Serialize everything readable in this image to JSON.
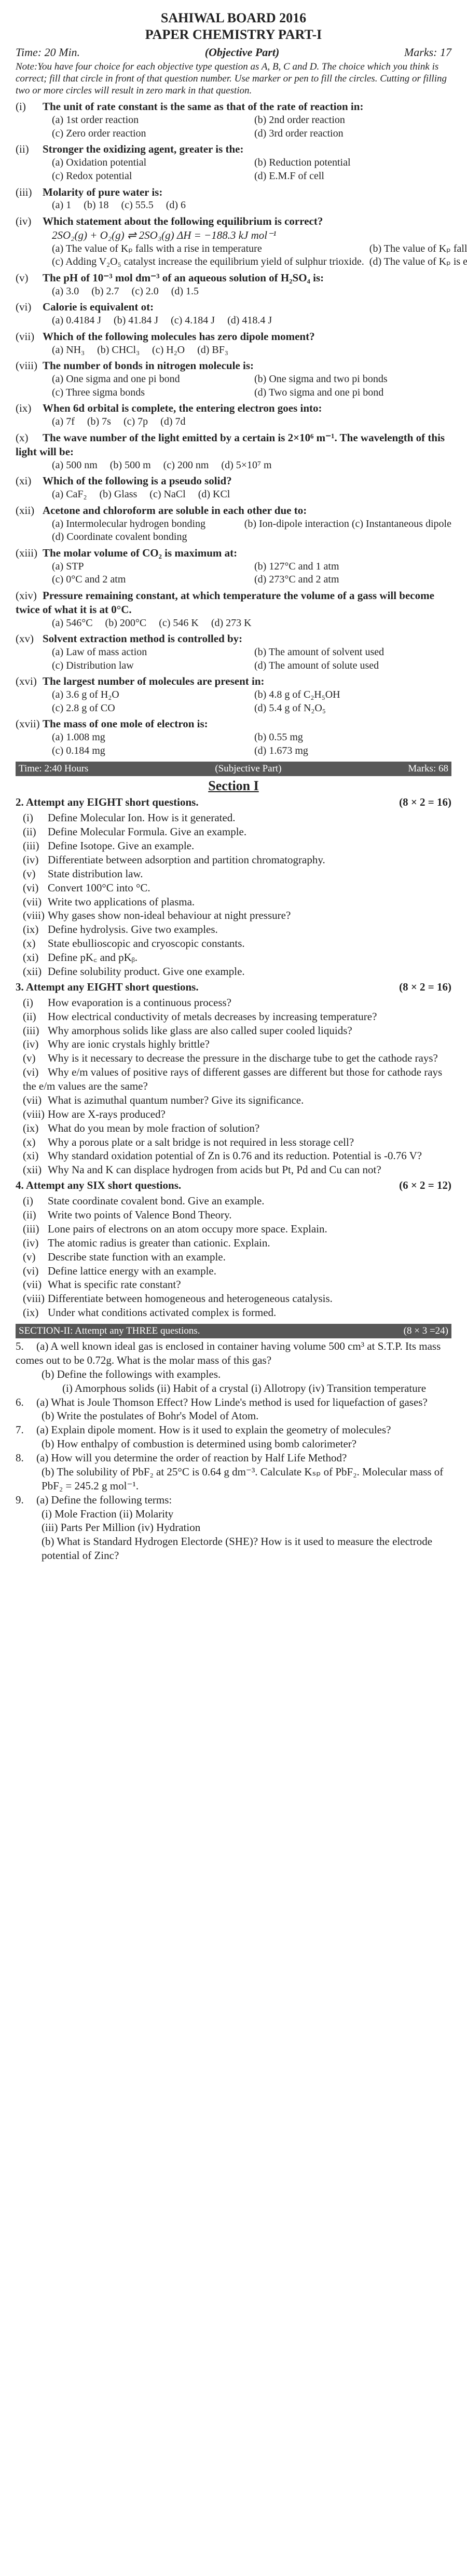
{
  "header": {
    "board": "SAHIWAL BOARD 2016",
    "paper": "PAPER CHEMISTRY PART-I",
    "time": "Time: 20 Min.",
    "part": "(Objective Part)",
    "marks": "Marks: 17",
    "note": "Note:You have four choice for each objective type question as A, B, C and D. The choice which you think is correct; fill that circle in front of that question number. Use marker or pen to fill the circles. Cutting or filling two or more circles will result in zero mark in that question."
  },
  "mcq": [
    {
      "n": "(i)",
      "q": "The unit of rate constant is the same as that of the rate of reaction in:",
      "o": [
        "(a)   1st order reaction",
        "(b)   2nd order reaction",
        "(c)   Zero order reaction",
        "(d)   3rd order reaction"
      ]
    },
    {
      "n": "(ii)",
      "q": "Stronger the oxidizing agent, greater is the:",
      "o": [
        "(a)   Oxidation potential",
        "(b)   Reduction potential",
        "(c)   Redox potential",
        "(d)   E.M.F of cell"
      ]
    },
    {
      "n": "(iii)",
      "q": "Molarity of pure water is:",
      "o4": [
        "(a)   1",
        "(b)   18",
        "(c)   55.5",
        "(d)   6"
      ]
    },
    {
      "n": "(iv)",
      "q": "Which statement about the following equilibrium is correct?",
      "extra": "2SO₂(g) + O₂(g) ⇌ 2SO₃(g) ΔH = −188.3 kJ mol⁻¹",
      "o": [
        "(a)   The value of Kₚ falls with a rise in temperature",
        "(b)   The value of Kₚ falls with increasing pressure",
        "(c)   Adding V₂O₅ catalyst increase the equilibrium yield of sulphur trioxide.",
        "(d)   The value of Kₚ is equal to K꜀."
      ]
    },
    {
      "n": "(v)",
      "q": "The pH of 10⁻³ mol dm⁻³ of an aqueous solution of H₂SO₄ is:",
      "o4": [
        "(a)   3.0",
        "(b)   2.7",
        "(c)   2.0",
        "(d)   1.5"
      ]
    },
    {
      "n": "(vi)",
      "q": "Calorie is equivalent ot:",
      "o4": [
        "(a)   0.4184 J",
        "(b)   41.84 J",
        "(c)   4.184 J",
        "(d)   418.4 J"
      ]
    },
    {
      "n": "(vii)",
      "q": "Which of the following molecules has zero dipole moment?",
      "o4": [
        "(a)   NH₃",
        "(b)   CHCl₃",
        "(c)   H₂O",
        "(d)   BF₃"
      ]
    },
    {
      "n": "(viii)",
      "q": "The number of bonds in nitrogen molecule is:",
      "o": [
        "(a)   One sigma and one pi bond",
        "(b)   One sigma and two pi bonds",
        "(c)   Three sigma bonds",
        "(d)   Two sigma and one pi bond"
      ]
    },
    {
      "n": "(ix)",
      "q": "When 6d orbital is complete, the entering electron goes into:",
      "o4": [
        "(a)   7f",
        "(b)   7s",
        "(c)   7p",
        "(d)   7d"
      ]
    },
    {
      "n": "(x)",
      "q": "The wave number of the light emitted by a certain is 2×10⁶ m⁻¹. The wavelength of this light will be:",
      "o4": [
        "(a)   500 nm",
        "(b)   500 m",
        "(c)   200 nm",
        "(d)   5×10⁷ m"
      ]
    },
    {
      "n": "(xi)",
      "q": "Which of the following is a pseudo solid?",
      "o4": [
        "(a)   CaF₂",
        "(b)   Glass",
        "(c)   NaCl",
        "(d)   KCl"
      ]
    },
    {
      "n": "(xii)",
      "q": "Acetone and chloroform are soluble in each other due to:",
      "o": [
        "(a)   Intermolecular hydrogen bonding",
        "(b)   Ion-dipole interaction     (c)   Instantaneous dipole",
        "(d)   Coordinate covalent bonding",
        ""
      ]
    },
    {
      "n": "(xiii)",
      "q": "The molar volume of CO₂ is maximum at:",
      "o": [
        "(a)   STP",
        "(b)   127°C and 1 atm",
        "(c)   0°C and 2 atm",
        "(d)   273°C and 2 atm"
      ]
    },
    {
      "n": "(xiv)",
      "q": "Pressure remaining constant, at which temperature the volume of a gass will become twice of what it is at 0°C.",
      "o4": [
        "(a)   546°C",
        "(b)   200°C",
        "(c)   546 K",
        "(d)   273 K"
      ]
    },
    {
      "n": "(xv)",
      "q": "Solvent extraction method is controlled by:",
      "o": [
        "(a)   Law of mass action",
        "(b)   The amount of solvent used",
        "(c)   Distribution law",
        "(d)   The amount of solute used"
      ]
    },
    {
      "n": "(xvi)",
      "q": "The largest number of molecules are present in:",
      "o": [
        "(a)   3.6 g of H₂O",
        "(b)   4.8 g of C₂H₅OH",
        "(c)   2.8 g of CO",
        "(d)   5.4 g of N₂O₅"
      ]
    },
    {
      "n": "(xvii)",
      "q": "The mass of one mole of electron is:",
      "o": [
        "(a)   1.008 mg",
        "(b)   0.55 mg",
        "(c)   0.184 mg",
        "(d)   1.673 mg"
      ]
    }
  ],
  "subjbar": {
    "left": "Time: 2:40 Hours",
    "mid": "(Subjective Part)",
    "right": "Marks: 68"
  },
  "section1_title": "Section I",
  "groups": [
    {
      "head_l": "2.   Attempt any EIGHT short questions.",
      "head_r": "(8 × 2 = 16)",
      "items": [
        {
          "n": "(i)",
          "t": "Define Molecular Ion. How is it generated."
        },
        {
          "n": "(ii)",
          "t": "Define Molecular Formula. Give an example."
        },
        {
          "n": "(iii)",
          "t": "Define Isotope. Give an example."
        },
        {
          "n": "(iv)",
          "t": "Differentiate between adsorption and partition chromatography."
        },
        {
          "n": "(v)",
          "t": "State distribution law."
        },
        {
          "n": "(vi)",
          "t": "Convert 100°C into °C."
        },
        {
          "n": "(vii)",
          "t": "Write two applications of plasma."
        },
        {
          "n": "(viii)",
          "t": "Why gases show non-ideal behaviour at night pressure?"
        },
        {
          "n": "(ix)",
          "t": "Define hydrolysis. Give two examples."
        },
        {
          "n": "(x)",
          "t": "State ebullioscopic and cryoscopic constants."
        },
        {
          "n": "(xi)",
          "t": "Define pK꜀ and pKᵦ."
        },
        {
          "n": "(xii)",
          "t": "Define solubility product. Give one example."
        }
      ]
    },
    {
      "head_l": "3.   Attempt any EIGHT short questions.",
      "head_r": "(8 × 2 = 16)",
      "items": [
        {
          "n": "(i)",
          "t": "How evaporation is a continuous process?"
        },
        {
          "n": "(ii)",
          "t": "How electrical conductivity of metals decreases by increasing temperature?"
        },
        {
          "n": "(iii)",
          "t": "Why amorphous solids like glass are also called super cooled liquids?"
        },
        {
          "n": "(iv)",
          "t": "Why are ionic crystals highly brittle?"
        },
        {
          "n": "(v)",
          "t": "Why is it necessary to decrease the pressure in the discharge tube to get the cathode rays?"
        },
        {
          "n": "(vi)",
          "t": "Why e/m values of positive rays of different gasses are different but those for cathode rays the e/m values are the same?"
        },
        {
          "n": "(vii)",
          "t": "What is azimuthal quantum number? Give its significance."
        },
        {
          "n": "(viii)",
          "t": "How are X-rays produced?"
        },
        {
          "n": "(ix)",
          "t": "What do you mean by mole fraction of solution?"
        },
        {
          "n": "(x)",
          "t": "Why a porous plate or a salt bridge is not required in less storage cell?"
        },
        {
          "n": "(xi)",
          "t": "Why standard oxidation potential of Zn is 0.76 and its reduction. Potential is -0.76 V?"
        },
        {
          "n": "(xii)",
          "t": "Why Na and K can displace hydrogen from acids but Pt, Pd and Cu can not?"
        }
      ]
    },
    {
      "head_l": "4.   Attempt any  SIX  short questions.",
      "head_r": "(6 × 2 = 12)",
      "items": [
        {
          "n": "(i)",
          "t": "State coordinate covalent bond. Give an example."
        },
        {
          "n": "(ii)",
          "t": "Write two points of Valence Bond Theory."
        },
        {
          "n": "(iii)",
          "t": "Lone pairs of electrons on an atom occupy more space. Explain."
        },
        {
          "n": "(iv)",
          "t": "The atomic radius is greater than cationic. Explain."
        },
        {
          "n": "(v)",
          "t": "Describe state function with an example."
        },
        {
          "n": "(vi)",
          "t": "Define lattice energy with an example."
        },
        {
          "n": "(vii)",
          "t": "What is specific rate constant?"
        },
        {
          "n": "(viii)",
          "t": "Differentiate between homogeneous and heterogeneous catalysis."
        },
        {
          "n": "(ix)",
          "t": "Under what conditions activated complex is formed."
        }
      ]
    }
  ],
  "sec2bar": {
    "left": "SECTION-II: Attempt any THREE questions.",
    "right": "(8 × 3 =24)"
  },
  "long": [
    {
      "n": "5.",
      "a": "(a)   A well known ideal gas is enclosed in container having volume 500 cm³ at S.T.P. Its mass comes out to be 0.72g. What is the molar mass of this gas?",
      "b": "(b)   Define the followings with examples.",
      "bopts": "(i)   Amorphous solids   (ii)   Habit of a crystal   (i)   Allotropy   (iv)   Transition temperature"
    },
    {
      "n": "6.",
      "a": "(a)   What is Joule Thomson Effect? How Linde's method is used for liquefaction of gases?",
      "b": "(b)   Write the postulates of Bohr's Model of Atom."
    },
    {
      "n": "7.",
      "a": "(a)   Explain dipole moment. How is it used to explain the geometry of molecules?",
      "b": "(b)   How enthalpy of combustion is determined using bomb calorimeter?"
    },
    {
      "n": "8.",
      "a": "(a)   How will you determine the order of reaction by Half Life Method?",
      "b": "(b)   The solubility of PbF₂ at 25°C is 0.64 g dm⁻³. Calculate Kₛₚ of PbF₂. Molecular mass of PbF₂ = 245.2 g mol⁻¹."
    },
    {
      "n": "9.",
      "a": "(a)   Define the following terms:",
      "aopts": "(i)   Mole Fraction          (ii)   Molarity\n(iii)  Parts Per Million       (iv)  Hydration",
      "b": "(b)   What is Standard Hydrogen Electorde (SHE)? How is it used to measure the electrode potential of Zinc?"
    }
  ]
}
